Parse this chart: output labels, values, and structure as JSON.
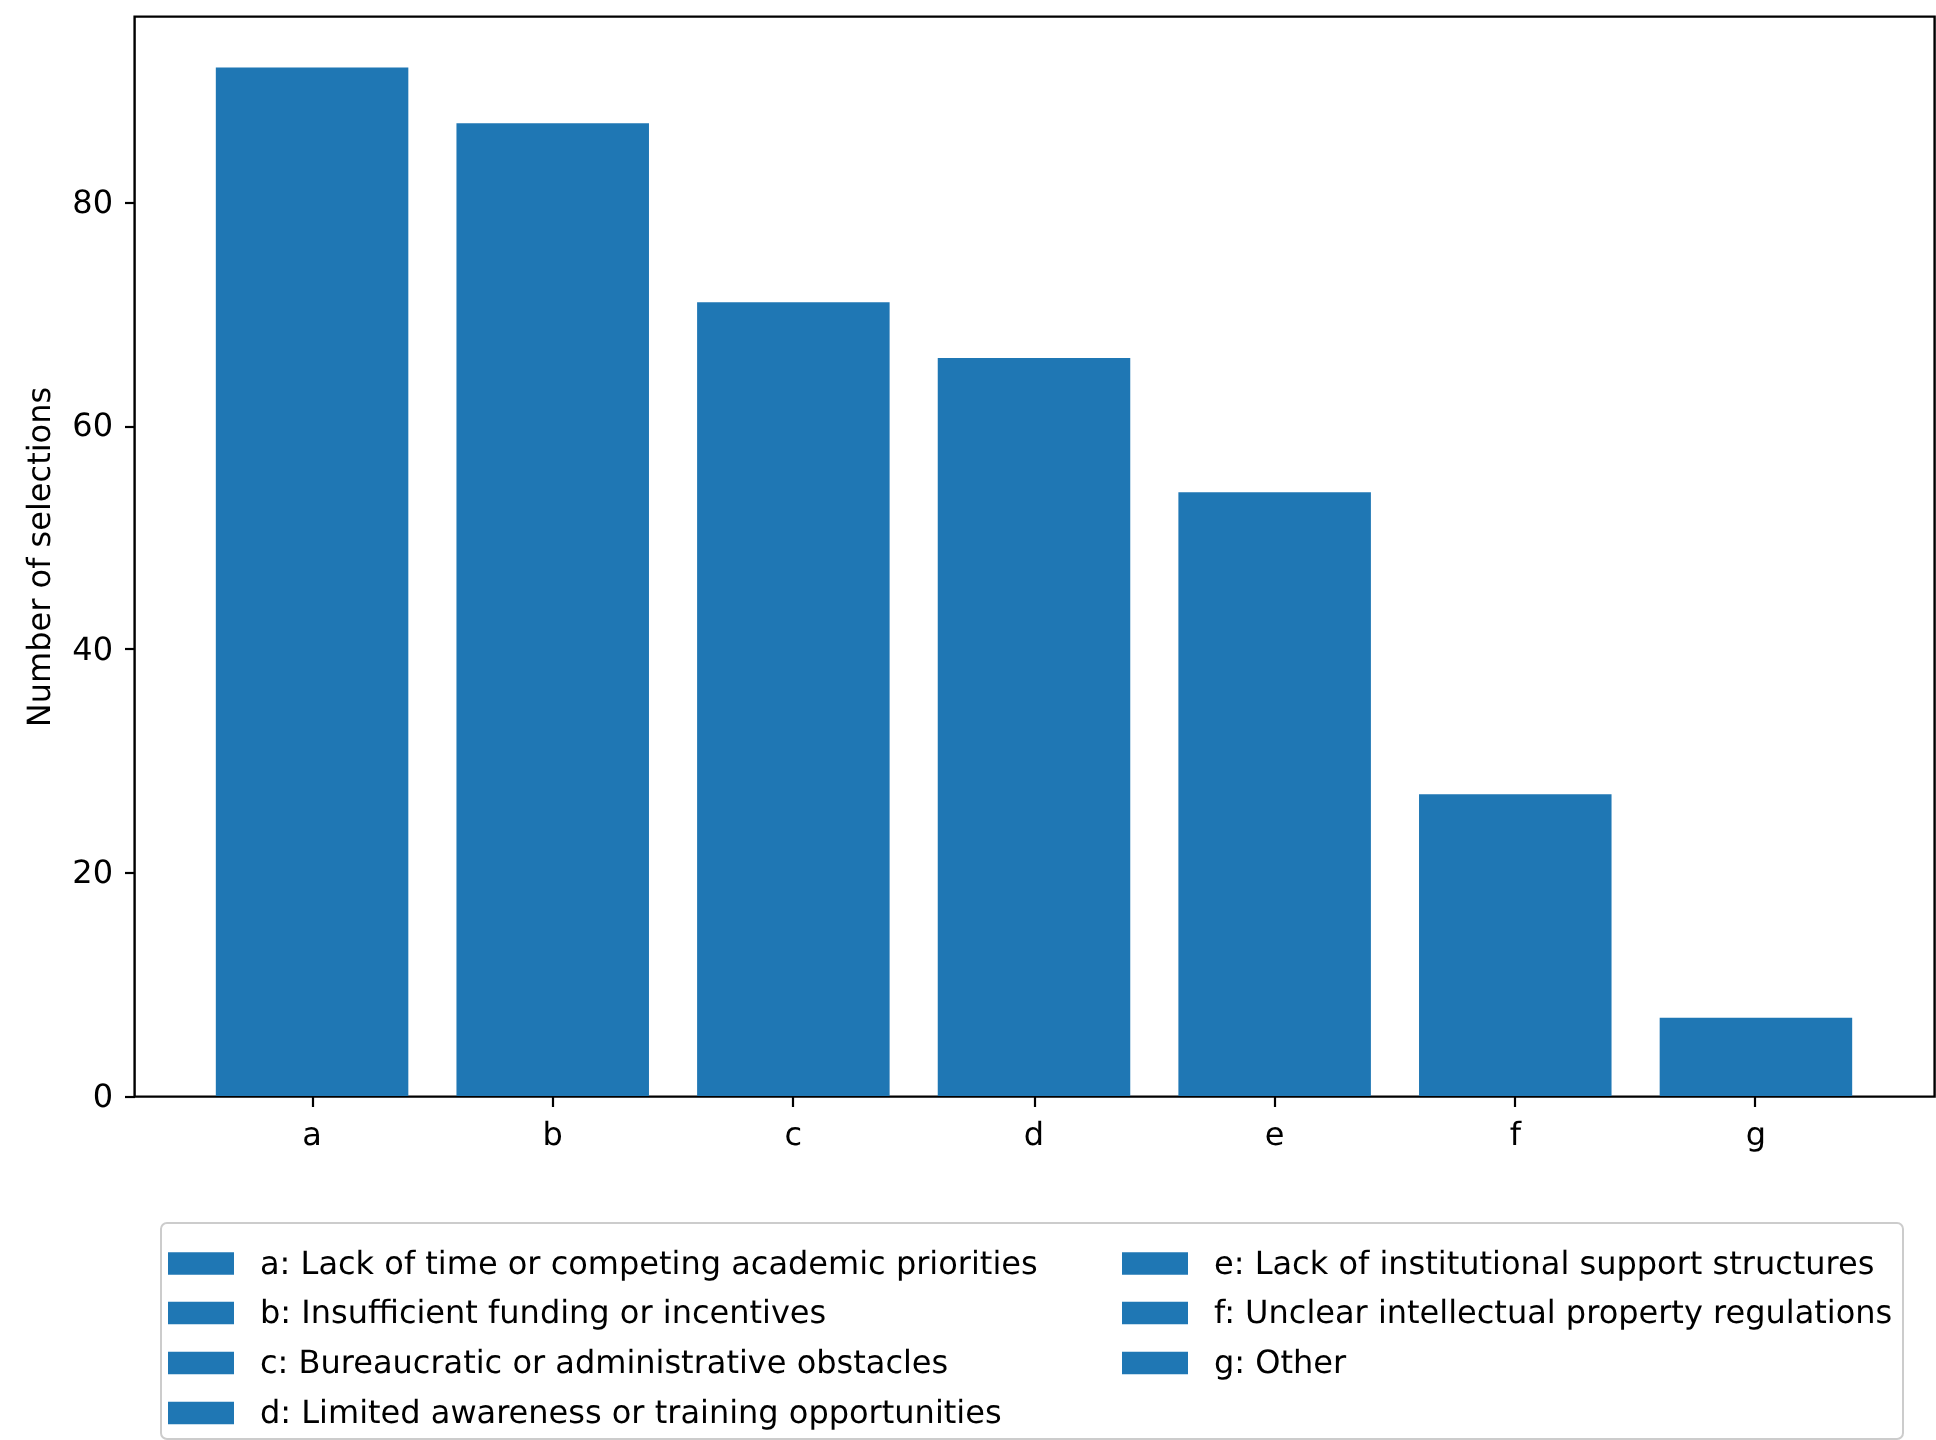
{
  "chart_data": {
    "type": "bar",
    "ylabel": "Number of selections",
    "categories": [
      "a",
      "b",
      "c",
      "d",
      "e",
      "f",
      "g"
    ],
    "series": [
      {
        "name": "a: Lack of time or competing academic priorities",
        "color": "#1f77b4",
        "values": [
          92,
          null,
          null,
          null,
          null,
          null,
          null
        ]
      },
      {
        "name": "b: Insufficient funding or incentives",
        "color": "#1f77b4",
        "values": [
          null,
          87,
          null,
          null,
          null,
          null,
          null
        ]
      },
      {
        "name": "c: Bureaucratic or administrative obstacles",
        "color": "#1f77b4",
        "values": [
          null,
          null,
          71,
          null,
          null,
          null,
          null
        ]
      },
      {
        "name": "d: Limited awareness or training opportunities",
        "color": "#1f77b4",
        "values": [
          null,
          null,
          null,
          66,
          null,
          null,
          null
        ]
      },
      {
        "name": "e: Lack of institutional support structures",
        "color": "#1f77b4",
        "values": [
          null,
          null,
          null,
          null,
          54,
          null,
          null
        ]
      },
      {
        "name": "f: Unclear intellectual property regulations",
        "color": "#1f77b4",
        "values": [
          null,
          null,
          null,
          null,
          null,
          27,
          null
        ]
      },
      {
        "name": "g: Other",
        "color": "#1f77b4",
        "values": [
          null,
          null,
          null,
          null,
          null,
          null,
          7
        ]
      }
    ],
    "ylim": [
      0,
      96.6
    ],
    "yticks": [
      0,
      20,
      40,
      60,
      80
    ],
    "legend": "bottom"
  }
}
